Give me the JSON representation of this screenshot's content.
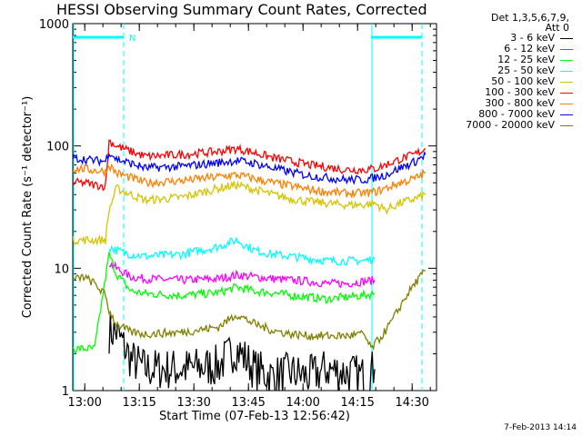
{
  "title": "HESSI Observing Summary Count Rates, Corrected",
  "footer": "7-Feb-2013 14:14",
  "legend": {
    "header_line1": "Det 1,3,5,6,7,9,",
    "header_line2": "Att 0"
  },
  "chart_data": {
    "type": "line",
    "title": "HESSI Observing Summary Count Rates, Corrected",
    "xlabel": "Start Time (07-Feb-13 12:56:42)",
    "ylabel": "Corrected Count Rate (s⁻¹ detector⁻¹)",
    "x_unit": "minutes after 12:56:42 UT",
    "xlim": [
      0,
      100
    ],
    "ylim": [
      1,
      1000
    ],
    "yscale": "log",
    "x_ticks": [
      {
        "label": "13:00",
        "minute": 3.3
      },
      {
        "label": "13:15",
        "minute": 18.3
      },
      {
        "label": "13:30",
        "minute": 33.3
      },
      {
        "label": "13:45",
        "minute": 48.3
      },
      {
        "label": "14:00",
        "minute": 63.3
      },
      {
        "label": "14:15",
        "minute": 78.3
      },
      {
        "label": "14:30",
        "minute": 93.3
      }
    ],
    "y_ticks": [
      {
        "label": "1",
        "value": 1
      },
      {
        "label": "10",
        "value": 10
      },
      {
        "label": "100",
        "value": 100
      },
      {
        "label": "1000",
        "value": 1000
      }
    ],
    "flags": {
      "night_intervals": [
        [
          0,
          14
        ],
        [
          82,
          96
        ]
      ],
      "saa_label": "N",
      "dashed_markers_minutes": [
        14,
        96
      ],
      "solid_markers_minutes": [
        0,
        82
      ],
      "color": "#00ffff"
    },
    "series": [
      {
        "name": "3 - 6 keV",
        "color": "#000000",
        "x": [
          10,
          12,
          16,
          20,
          30,
          40,
          45,
          50,
          55,
          60,
          65,
          70,
          75,
          80,
          83
        ],
        "y": [
          3,
          3,
          1.8,
          1.5,
          1.5,
          1.6,
          2.2,
          1.5,
          1.3,
          1.4,
          1.3,
          1.5,
          1.4,
          1.3,
          1.5
        ]
      },
      {
        "name": "6 - 12 keV",
        "color": "#ff00ff",
        "x": [
          10,
          12,
          16,
          20,
          30,
          40,
          45,
          50,
          55,
          60,
          65,
          70,
          75,
          80,
          83
        ],
        "y": [
          11,
          10,
          8.5,
          8.2,
          8.0,
          8.2,
          8.8,
          8.5,
          8.2,
          8.0,
          7.8,
          7.5,
          7.5,
          7.8,
          8
        ]
      },
      {
        "name": "12 - 25 keV",
        "color": "#00ff00",
        "x": [
          0,
          3,
          6,
          10,
          12,
          16,
          20,
          30,
          40,
          45,
          50,
          55,
          60,
          65,
          70,
          75,
          80,
          83
        ],
        "y": [
          2.2,
          2.2,
          2.2,
          13,
          9,
          6.5,
          6.2,
          6.0,
          6.3,
          7.0,
          6.5,
          6.3,
          6.0,
          5.8,
          5.6,
          5.8,
          6.0,
          6.2
        ]
      },
      {
        "name": "25 - 50 keV",
        "color": "#00ffff",
        "x": [
          10,
          12,
          16,
          20,
          30,
          40,
          45,
          50,
          55,
          60,
          65,
          70,
          75,
          80,
          83
        ],
        "y": [
          15,
          14,
          13,
          12.5,
          13,
          15,
          17,
          14,
          13,
          12.5,
          12,
          11.5,
          11.5,
          11.5,
          12
        ]
      },
      {
        "name": "50 - 100 keV",
        "color": "#d4c400",
        "x": [
          0,
          3,
          6,
          9,
          10,
          12,
          16,
          20,
          30,
          40,
          45,
          50,
          55,
          60,
          65,
          70,
          75,
          80,
          83,
          86,
          90,
          94,
          97
        ],
        "y": [
          17,
          17,
          17,
          17,
          30,
          45,
          40,
          36,
          38,
          45,
          48,
          44,
          40,
          37,
          35,
          34,
          33,
          33,
          34,
          30,
          34,
          37,
          40
        ]
      },
      {
        "name": "100 - 300 keV",
        "color": "#ff0000",
        "x": [
          0,
          3,
          6,
          9,
          10,
          12,
          16,
          20,
          30,
          40,
          45,
          50,
          55,
          60,
          65,
          70,
          75,
          80,
          83,
          86,
          90,
          94,
          97
        ],
        "y": [
          50,
          50,
          48,
          47,
          110,
          100,
          90,
          82,
          85,
          90,
          95,
          88,
          80,
          75,
          70,
          67,
          64,
          64,
          65,
          70,
          78,
          85,
          95
        ]
      },
      {
        "name": "300 - 800 keV",
        "color": "#ff7f00",
        "x": [
          0,
          3,
          6,
          9,
          10,
          12,
          16,
          20,
          30,
          40,
          45,
          50,
          55,
          60,
          65,
          70,
          75,
          80,
          83,
          86,
          90,
          94,
          97
        ],
        "y": [
          65,
          65,
          63,
          62,
          70,
          60,
          55,
          50,
          52,
          56,
          58,
          54,
          50,
          47,
          44,
          42,
          41,
          41,
          42,
          45,
          50,
          54,
          60
        ]
      },
      {
        "name": "800 - 7000 keV",
        "color": "#0000ff",
        "x": [
          0,
          3,
          6,
          9,
          10,
          12,
          16,
          20,
          30,
          40,
          45,
          50,
          55,
          60,
          65,
          70,
          75,
          80,
          83,
          86,
          90,
          94,
          97
        ],
        "y": [
          80,
          78,
          76,
          75,
          90,
          78,
          72,
          66,
          68,
          73,
          76,
          72,
          66,
          61,
          57,
          55,
          53,
          53,
          55,
          58,
          66,
          74,
          85
        ]
      },
      {
        "name": "7000 - 20000 keV",
        "color": "#808000",
        "x": [
          0,
          3,
          6,
          9,
          10,
          12,
          16,
          20,
          30,
          40,
          45,
          50,
          55,
          60,
          65,
          70,
          75,
          80,
          82,
          85,
          88,
          91,
          94,
          97
        ],
        "y": [
          8,
          8.5,
          7.5,
          6,
          4.5,
          3.5,
          3.0,
          2.9,
          3.0,
          3.3,
          4.2,
          3.5,
          3.1,
          2.9,
          2.8,
          2.8,
          2.8,
          2.9,
          2.2,
          2.8,
          3.8,
          5.5,
          7.5,
          9.5
        ]
      }
    ]
  }
}
